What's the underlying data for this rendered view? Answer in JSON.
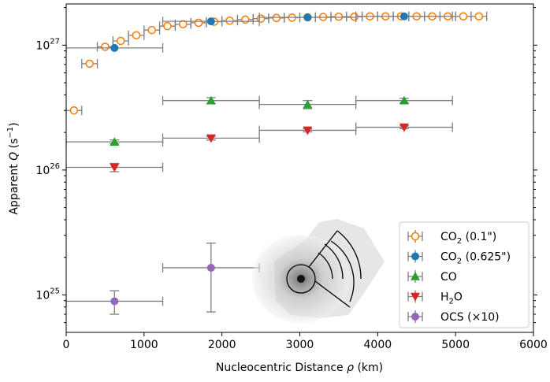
{
  "chart_data": {
    "type": "scatter",
    "xlabel_pre": "Nucleocentric Distance ",
    "xlabel_var": "ρ",
    "xlabel_post": " (km)",
    "ylabel_pre": "Apparent ",
    "ylabel_var": "Q",
    "ylabel_post": " (s",
    "ylabel_sup": "−1",
    "ylabel_end": ")",
    "xlim": [
      0,
      6000
    ],
    "ylim_exp": [
      24.7,
      27.33
    ],
    "yscale": "log",
    "x_ticks": [
      "0",
      "1000",
      "2000",
      "3000",
      "4000",
      "5000",
      "6000"
    ],
    "y_ticks": [
      {
        "exp": 25,
        "base": "10",
        "sup": "25"
      },
      {
        "exp": 26,
        "base": "10",
        "sup": "26"
      },
      {
        "exp": 27,
        "base": "10",
        "sup": "27"
      }
    ],
    "legend_position": "lower-right",
    "series": [
      {
        "name": "CO2_fine",
        "label_main": "CO",
        "label_sub": "2",
        "label_suffix": " (0.1\")",
        "marker": "circle-open",
        "color": "#ff7f0e",
        "x": [
          100,
          300,
          500,
          700,
          900,
          1100,
          1300,
          1500,
          1700,
          1900,
          2100,
          2300,
          2500,
          2700,
          2900,
          3100,
          3300,
          3500,
          3700,
          3900,
          4100,
          4300,
          4500,
          4700,
          4900,
          5100,
          5300
        ],
        "y": [
          3e+26,
          7.1e+26,
          9.7e+26,
          1.08e+27,
          1.2e+27,
          1.32e+27,
          1.42e+27,
          1.47e+27,
          1.51e+27,
          1.54e+27,
          1.57e+27,
          1.6e+27,
          1.63e+27,
          1.65e+27,
          1.66e+27,
          1.67e+27,
          1.68e+27,
          1.69e+27,
          1.69e+27,
          1.7e+27,
          1.7e+27,
          1.7e+27,
          1.7e+27,
          1.7e+27,
          1.7e+27,
          1.7e+27,
          1.7e+27
        ],
        "xerr": 100
      },
      {
        "name": "CO2_coarse",
        "label_main": "CO",
        "label_sub": "2",
        "label_suffix": " (0.625\")",
        "marker": "circle",
        "color": "#1f77b4",
        "x": [
          620,
          1860,
          3100,
          4340
        ],
        "y": [
          9.5e+26,
          1.55e+27,
          1.67e+27,
          1.7e+27
        ],
        "xerr": 620
      },
      {
        "name": "CO",
        "label_main": "CO",
        "label_sub": "",
        "label_suffix": "",
        "marker": "triangle-up",
        "color": "#2ca02c",
        "x": [
          620,
          1860,
          3100,
          4340
        ],
        "y": [
          1.68e+26,
          3.6e+26,
          3.35e+26,
          3.6e+26
        ],
        "xerr": 620,
        "yerr": [
          6e+24,
          2e+25,
          2.5e+25,
          1.5e+25
        ]
      },
      {
        "name": "H2O",
        "label_main": "H",
        "label_sub": "2",
        "label_suffix": "O",
        "marker": "triangle-down",
        "color": "#d62728",
        "x": [
          620,
          1860,
          3100,
          4340
        ],
        "y": [
          1.05e+26,
          1.8e+26,
          2.08e+26,
          2.2e+26
        ],
        "xerr": 620,
        "yerr": [
          8e+24,
          6e+24,
          6e+24,
          6e+24
        ]
      },
      {
        "name": "OCS",
        "label_main": "OCS (×10)",
        "label_sub": "",
        "label_suffix": "",
        "marker": "circle",
        "color": "#9467bd",
        "x": [
          620,
          1860
        ],
        "y": [
          8.9e+24,
          1.65e+25
        ],
        "xerr": 620,
        "yerr_lo": [
          1.9e+24,
          9.2e+24
        ],
        "yerr_hi": [
          1.9e+24,
          9.5e+24
        ]
      }
    ]
  }
}
